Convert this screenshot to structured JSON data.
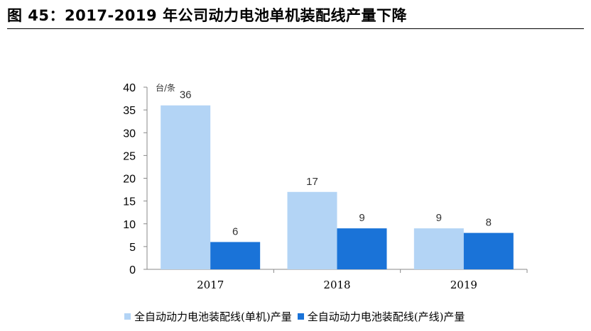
{
  "figure": {
    "title": "图 45：2017-2019 年公司动力电池单机装配线产量下降"
  },
  "chart_data": {
    "type": "bar",
    "categories": [
      "2017",
      "2018",
      "2019"
    ],
    "series": [
      {
        "name": "全自动动力电池装配线(单机)产量",
        "values": [
          36,
          17,
          9
        ],
        "color": "#b3d4f5"
      },
      {
        "name": "全自动动力电池装配线(产线)产量",
        "values": [
          6,
          9,
          8
        ],
        "color": "#1a73d8"
      }
    ],
    "ylim": [
      0,
      40
    ],
    "yticks": [
      0,
      5,
      10,
      15,
      20,
      25,
      30,
      35,
      40
    ],
    "unit_label": "台/条",
    "legend_position": "bottom",
    "grid": false
  }
}
